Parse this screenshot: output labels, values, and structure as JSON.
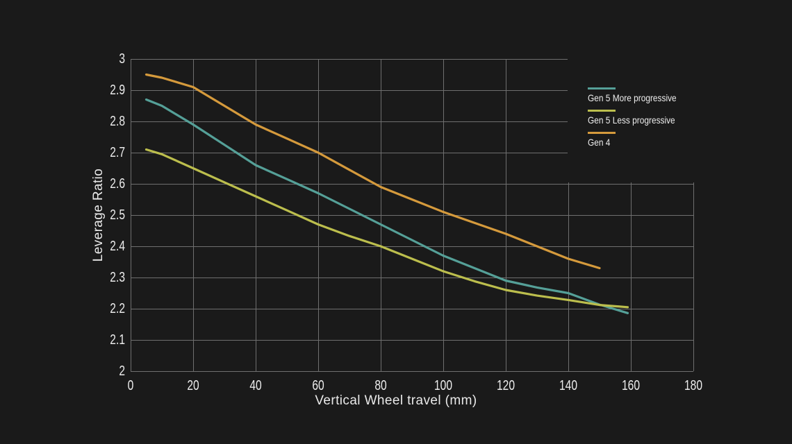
{
  "page": {
    "background": "#1a1a1a",
    "grid_color": "#6f6f6f",
    "text_color": "#ececec"
  },
  "chart_data": {
    "type": "line",
    "title": "",
    "xlabel": "Vertical Wheel travel (mm)",
    "ylabel": "Leverage Ratio",
    "xlim": [
      0,
      180
    ],
    "ylim": [
      2,
      3
    ],
    "x_ticks": [
      0,
      20,
      40,
      60,
      80,
      100,
      120,
      140,
      160,
      180
    ],
    "y_ticks": [
      2,
      2.1,
      2.2,
      2.3,
      2.4,
      2.5,
      2.6,
      2.7,
      2.8,
      2.9,
      3
    ],
    "grid": true,
    "legend_position": "top-right-inset",
    "series": [
      {
        "name": "Gen 5 More progressive",
        "color": "#55a098",
        "points": [
          [
            5,
            2.87
          ],
          [
            10,
            2.85
          ],
          [
            20,
            2.79
          ],
          [
            30,
            2.725
          ],
          [
            40,
            2.66
          ],
          [
            50,
            2.615
          ],
          [
            60,
            2.57
          ],
          [
            70,
            2.52
          ],
          [
            80,
            2.47
          ],
          [
            90,
            2.42
          ],
          [
            100,
            2.37
          ],
          [
            110,
            2.33
          ],
          [
            120,
            2.29
          ],
          [
            130,
            2.268
          ],
          [
            140,
            2.25
          ],
          [
            150,
            2.213
          ],
          [
            159,
            2.186
          ]
        ]
      },
      {
        "name": "Gen 5 Less progressive",
        "color": "#bcbe4d",
        "points": [
          [
            5,
            2.71
          ],
          [
            10,
            2.695
          ],
          [
            20,
            2.65
          ],
          [
            30,
            2.605
          ],
          [
            40,
            2.56
          ],
          [
            50,
            2.515
          ],
          [
            60,
            2.47
          ],
          [
            70,
            2.433
          ],
          [
            80,
            2.4
          ],
          [
            90,
            2.36
          ],
          [
            100,
            2.32
          ],
          [
            110,
            2.288
          ],
          [
            120,
            2.26
          ],
          [
            130,
            2.242
          ],
          [
            140,
            2.228
          ],
          [
            150,
            2.212
          ],
          [
            159,
            2.205
          ]
        ]
      },
      {
        "name": "Gen 4",
        "color": "#d59a3c",
        "points": [
          [
            5,
            2.95
          ],
          [
            10,
            2.94
          ],
          [
            20,
            2.91
          ],
          [
            30,
            2.85
          ],
          [
            40,
            2.79
          ],
          [
            50,
            2.745
          ],
          [
            60,
            2.7
          ],
          [
            70,
            2.645
          ],
          [
            80,
            2.59
          ],
          [
            90,
            2.55
          ],
          [
            100,
            2.51
          ],
          [
            110,
            2.475
          ],
          [
            120,
            2.44
          ],
          [
            130,
            2.4
          ],
          [
            140,
            2.36
          ],
          [
            150,
            2.33
          ]
        ]
      }
    ]
  }
}
